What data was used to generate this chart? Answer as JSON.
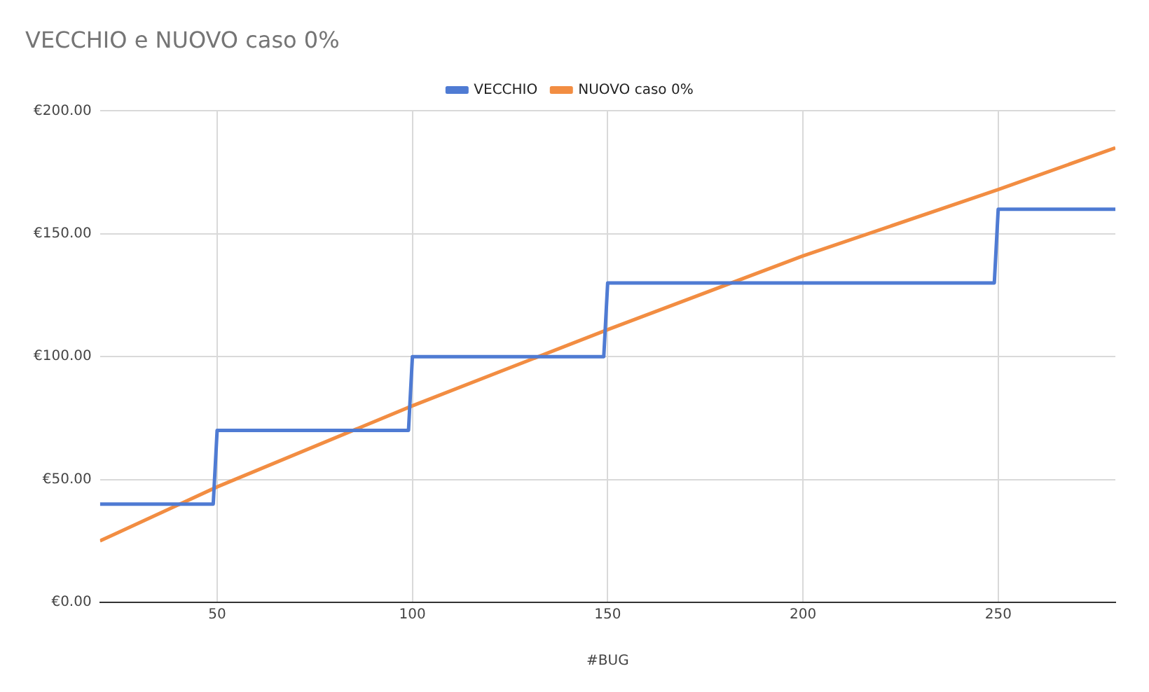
{
  "chart_data": {
    "type": "line",
    "title": "VECCHIO e NUOVO caso 0%",
    "xlabel": "#BUG",
    "xlim": [
      20,
      280
    ],
    "xticks": [
      50,
      100,
      150,
      200,
      250
    ],
    "ylim": [
      0,
      200
    ],
    "yticks": [
      {
        "value": 0,
        "label": "€0.00"
      },
      {
        "value": 50,
        "label": "€50.00"
      },
      {
        "value": 100,
        "label": "€100.00"
      },
      {
        "value": 150,
        "label": "€150.00"
      },
      {
        "value": 200,
        "label": "€200.00"
      }
    ],
    "grid": true,
    "legend": "top",
    "marker": "none",
    "series": [
      {
        "name": "VECCHIO",
        "color": "#4f7bd3",
        "x": [
          20,
          49,
          50,
          99,
          100,
          149,
          150,
          249,
          250,
          280
        ],
        "values": [
          40,
          40,
          70,
          70,
          100,
          100,
          130,
          130,
          160,
          160
        ]
      },
      {
        "name": "NUOVO caso 0%",
        "color": "#f28d42",
        "x": [
          20,
          50,
          100,
          150,
          200,
          250,
          280
        ],
        "values": [
          25,
          47,
          80,
          111,
          141,
          168,
          185
        ]
      }
    ]
  }
}
